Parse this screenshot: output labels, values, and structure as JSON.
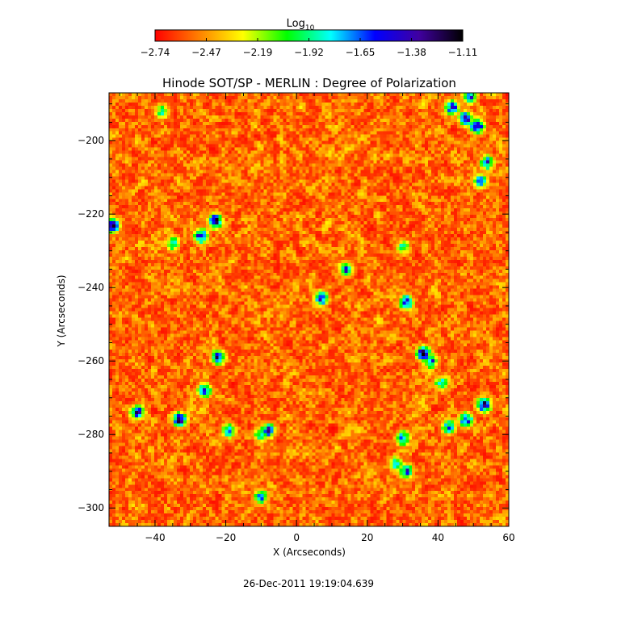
{
  "chart_data": {
    "type": "heatmap",
    "title": "Hinode SOT/SP - MERLIN : Degree of Polarization",
    "xlabel": "X (Arcseconds)",
    "ylabel": "Y (Arcseconds)",
    "xlim": [
      -53,
      60
    ],
    "ylim": [
      -305,
      -187
    ],
    "xticks": [
      -40,
      -20,
      0,
      20,
      40,
      60
    ],
    "yticks": [
      -200,
      -220,
      -240,
      -260,
      -280,
      -300
    ],
    "colorbar": {
      "label_base": "Log",
      "label_sub": "10",
      "range": [
        -2.74,
        -1.11
      ],
      "tick_labels": [
        "-2.74",
        "-2.47",
        "-2.19",
        "-1.92",
        "-1.65",
        "-1.38",
        "-1.11"
      ],
      "colormap": [
        "#ff0000",
        "#ff8000",
        "#ffff00",
        "#00ff00",
        "#00ffff",
        "#0000ff",
        "#4000a0",
        "#000000"
      ]
    },
    "grid": false,
    "features": [
      {
        "x": -52,
        "y": -223,
        "value": -1.35
      },
      {
        "x": -23,
        "y": -222,
        "value": -1.3
      },
      {
        "x": -27,
        "y": -226,
        "value": -1.45
      },
      {
        "x": -35,
        "y": -228,
        "value": -1.8
      },
      {
        "x": -22,
        "y": -259,
        "value": -1.4
      },
      {
        "x": -26,
        "y": -268,
        "value": -1.6
      },
      {
        "x": -45,
        "y": -274,
        "value": -1.4
      },
      {
        "x": -33,
        "y": -276,
        "value": -1.35
      },
      {
        "x": -19,
        "y": -279,
        "value": -1.7
      },
      {
        "x": -10,
        "y": -280,
        "value": -1.8
      },
      {
        "x": -8,
        "y": -279,
        "value": -1.5
      },
      {
        "x": 7,
        "y": -243,
        "value": -1.45
      },
      {
        "x": 14,
        "y": -235,
        "value": -1.6
      },
      {
        "x": 31,
        "y": -244,
        "value": -1.45
      },
      {
        "x": 36,
        "y": -258,
        "value": -1.3
      },
      {
        "x": 38,
        "y": -260,
        "value": -1.6
      },
      {
        "x": 41,
        "y": -266,
        "value": -1.8
      },
      {
        "x": 53,
        "y": -272,
        "value": -1.3
      },
      {
        "x": 48,
        "y": -276,
        "value": -1.5
      },
      {
        "x": 43,
        "y": -278,
        "value": -1.7
      },
      {
        "x": 30,
        "y": -281,
        "value": -1.6
      },
      {
        "x": 28,
        "y": -288,
        "value": -1.8
      },
      {
        "x": 31,
        "y": -290,
        "value": -1.6
      },
      {
        "x": 48,
        "y": -194,
        "value": -1.4
      },
      {
        "x": 51,
        "y": -196,
        "value": -1.3
      },
      {
        "x": 44,
        "y": -191,
        "value": -1.5
      },
      {
        "x": 54,
        "y": -206,
        "value": -1.6
      },
      {
        "x": 52,
        "y": -211,
        "value": -1.7
      },
      {
        "x": 49,
        "y": -188,
        "value": -1.6
      },
      {
        "x": -38,
        "y": -192,
        "value": -1.9
      },
      {
        "x": -10,
        "y": -297,
        "value": -1.7
      },
      {
        "x": 30,
        "y": -229,
        "value": -1.9
      }
    ]
  },
  "footer": {
    "timestamp": "26-Dec-2011 19:19:04.639"
  }
}
